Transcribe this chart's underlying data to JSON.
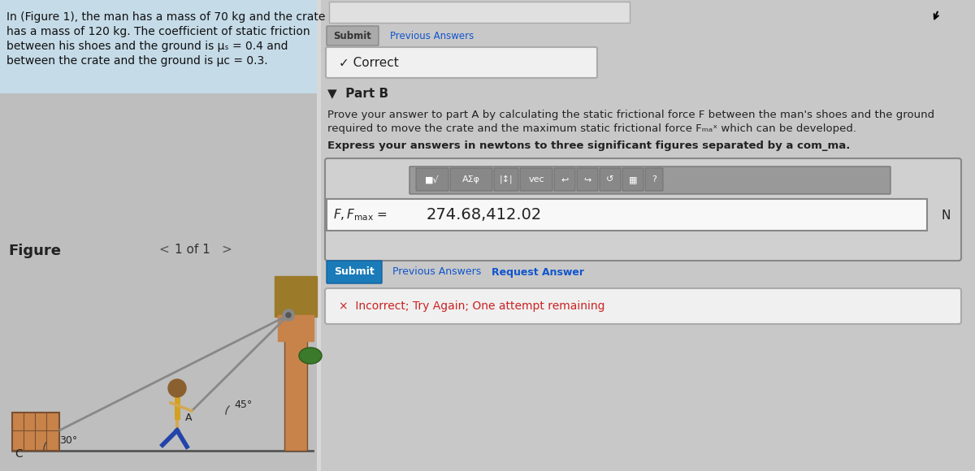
{
  "bg_color": "#d8d8d8",
  "left_text_bg": "#c5dbe8",
  "fig_area_color": "#bebebe",
  "right_panel_color": "#c8c8c8",
  "problem_text_line1": "In (Figure 1), the man has a mass of 70 kg and the crate",
  "problem_text_line2": "has a mass of 120 kg. The coefficient of static friction",
  "problem_text_line3": "between his shoes and the ground is μₛ = 0.4 and",
  "problem_text_line4": "between the crate and the ground is μᴄ = 0.3.",
  "figure_label": "Figure",
  "page_label": "1 of 1",
  "submit_btn_text": "Submit",
  "previous_answers_text": "Previous Answers",
  "correct_text": "✓ Correct",
  "part_b_label": "▼  Part B",
  "description_line1": "Prove your answer to part A by calculating the static frictional force F between the man's shoes and the ground",
  "description_line2": "required to move the crate and the maximum static frictional force Fₘₐˣ which can be developed.",
  "express_text": "Express your answers in newtons to three significant figures separated by a com_ma.",
  "answer_value": "274.68,412.02",
  "answer_unit": "N",
  "submit2_btn_text": "Submit",
  "submit2_btn_color": "#1a7bb8",
  "prev_answers_link": "Previous Answers",
  "request_answer_link": "Request Answer",
  "incorrect_text": "×  Incorrect; Try Again; One attempt remaining",
  "angle1": "30°",
  "angle2": "45°",
  "point_a": "A",
  "point_c": "C"
}
